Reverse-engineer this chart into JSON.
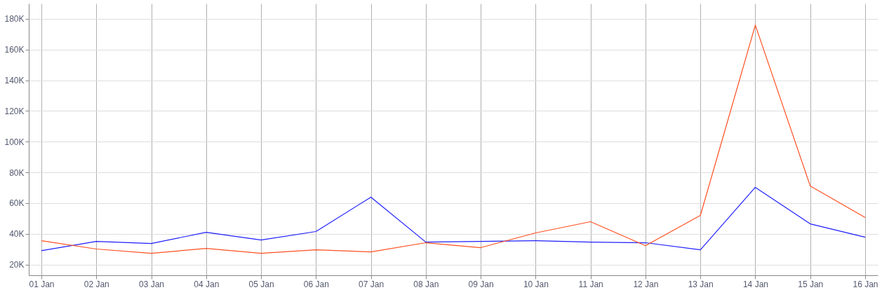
{
  "chart_data": {
    "type": "line",
    "x": [
      "--01-01",
      "--01-02",
      "--01-03",
      "--01-04",
      "--01-05",
      "--01-06",
      "--01-07",
      "--01-08",
      "--01-09",
      "--01-10",
      "--01-11",
      "--01-12",
      "--01-13",
      "--01-14",
      "--01-15",
      "--01-16"
    ],
    "series": [
      {
        "color": "#1f1fff",
        "values": [
          29000,
          35100,
          33700,
          41000,
          36000,
          41500,
          63900,
          34600,
          35100,
          35500,
          34600,
          34200,
          29600,
          70300,
          46500,
          37800
        ]
      },
      {
        "color": "#ff5020",
        "values": [
          35500,
          30100,
          27300,
          30500,
          27300,
          29600,
          28200,
          34200,
          31000,
          40600,
          47900,
          32300,
          52000,
          175900,
          71200,
          50600
        ]
      }
    ],
    "xlim": [
      "--01-01",
      "--01-16"
    ],
    "xticks": [
      {
        "value": "--01-01",
        "label": "01 Jan"
      },
      {
        "value": "--01-02",
        "label": "02 Jan"
      },
      {
        "value": "--01-03",
        "label": "03 Jan"
      },
      {
        "value": "--01-04",
        "label": "04 Jan"
      },
      {
        "value": "--01-05",
        "label": "05 Jan"
      },
      {
        "value": "--01-06",
        "label": "06 Jan"
      },
      {
        "value": "--01-07",
        "label": "07 Jan"
      },
      {
        "value": "--01-08",
        "label": "08 Jan"
      },
      {
        "value": "--01-09",
        "label": "09 Jan"
      },
      {
        "value": "--01-10",
        "label": "10 Jan"
      },
      {
        "value": "--01-11",
        "label": "11 Jan"
      },
      {
        "value": "--01-12",
        "label": "12 Jan"
      },
      {
        "value": "--01-13",
        "label": "13 Jan"
      },
      {
        "value": "--01-14",
        "label": "14 Jan"
      },
      {
        "value": "--01-15",
        "label": "15 Jan"
      },
      {
        "value": "--01-16",
        "label": "16 Jan"
      }
    ],
    "ylim": [
      13000,
      190000
    ],
    "yticks": [
      {
        "value": 20000,
        "label": "20K"
      },
      {
        "value": 40000,
        "label": "40K"
      },
      {
        "value": 60000,
        "label": "60K"
      },
      {
        "value": 80000,
        "label": "80K"
      },
      {
        "value": 100000,
        "label": "100K"
      },
      {
        "value": 120000,
        "label": "120K"
      },
      {
        "value": 140000,
        "label": "140K"
      },
      {
        "value": 160000,
        "label": "160K"
      },
      {
        "value": 180000,
        "label": "180K"
      }
    ],
    "grid": true,
    "marker": "none",
    "line_style": "solid"
  }
}
